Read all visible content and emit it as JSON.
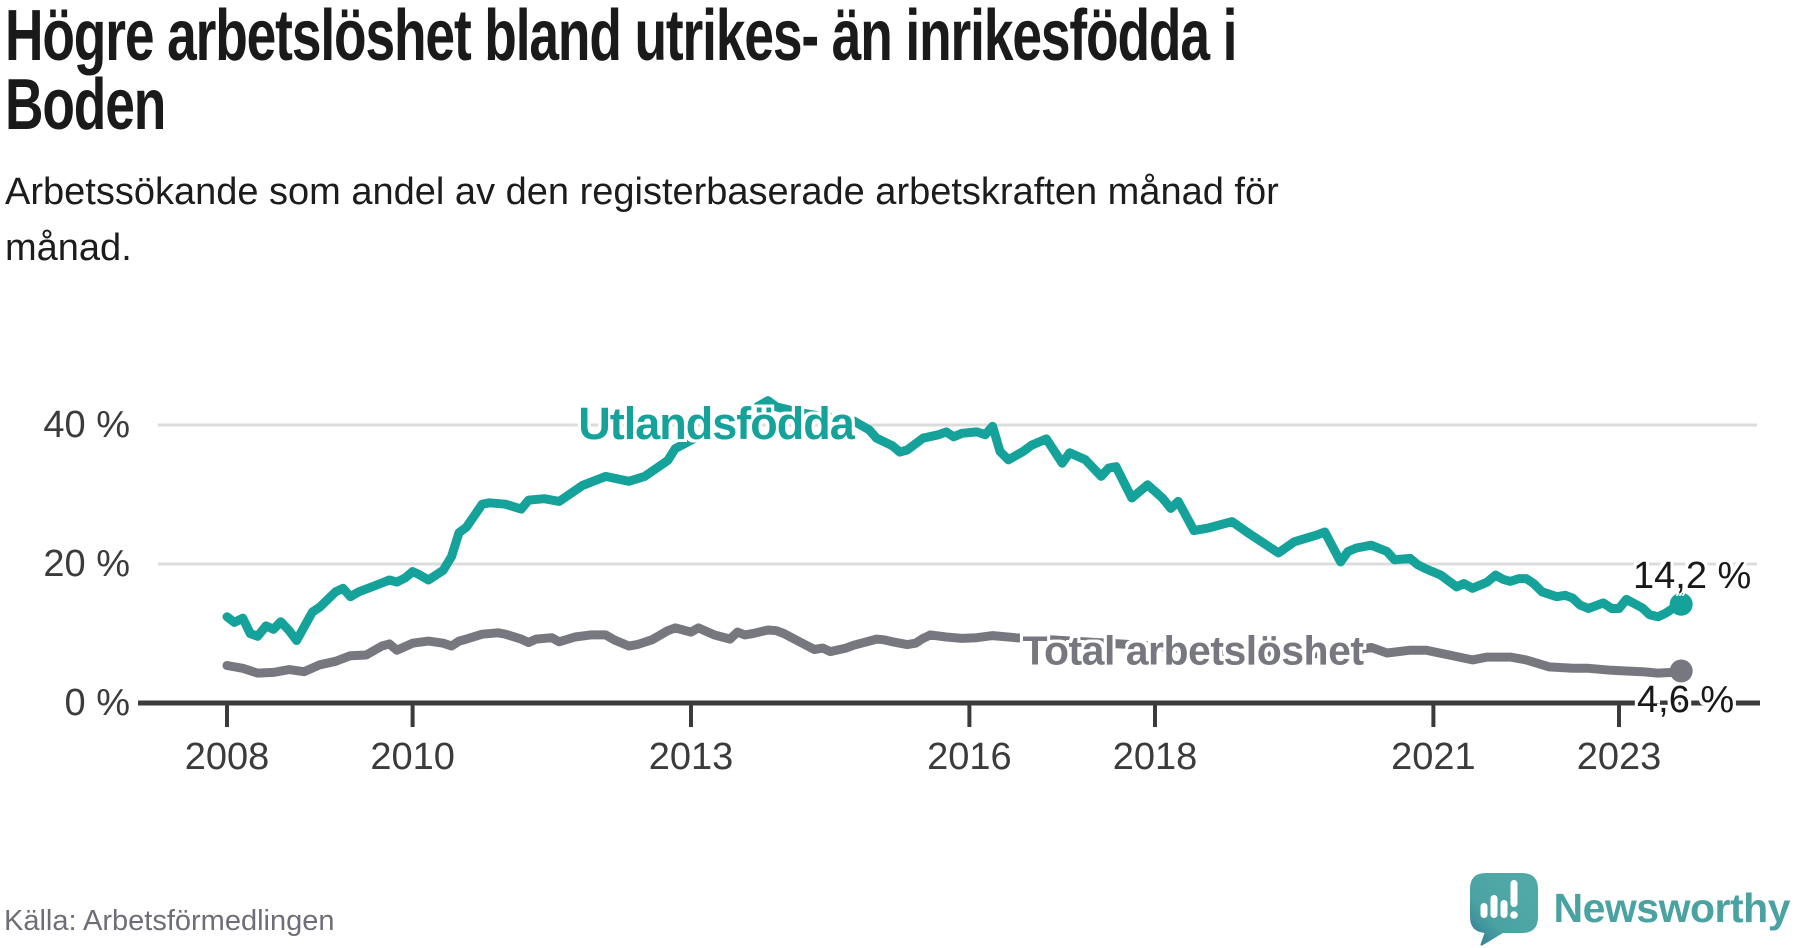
{
  "header": {
    "title_lines": [
      "Högre arbetslöshet bland utrikes- än inrikesfödda i",
      "Boden"
    ],
    "subtitle_lines": [
      "Arbetssökande som andel av den registerbaserade arbetskraften månad för",
      "månad."
    ]
  },
  "footer": {
    "source": "Källa: Arbetsförmedlingen",
    "brand_name": "Newsworthy"
  },
  "colors": {
    "utlandsfodda": "#15a29a",
    "total": "#77777f",
    "axis": "#3b3b3b",
    "grid": "#dcdcdc",
    "brand_teal": "#4aa3a2",
    "title_text": "#1a1a1a"
  },
  "chart_data": {
    "type": "line",
    "title": "Högre arbetslöshet bland utrikes- än inrikesfödda i Boden",
    "subtitle": "Arbetssökande som andel av den registerbaserade arbetskraften månad för månad.",
    "unit": "%",
    "grid": "horizontal",
    "legend_position": "inline-labels",
    "x_axis": {
      "ticks": [
        2008,
        2010,
        2013,
        2016,
        2018,
        2021,
        2023
      ],
      "range": [
        2008,
        2023.75
      ]
    },
    "y_axis": {
      "ticks": [
        {
          "value": 0,
          "label": "0 %"
        },
        {
          "value": 20,
          "label": "20 %"
        },
        {
          "value": 40,
          "label": "40 %"
        }
      ],
      "range": [
        0,
        45
      ]
    },
    "series": [
      {
        "name": "Utlandsfödda",
        "color": "#15a29a",
        "end_label": "14,2 %",
        "latest_value": 14.2,
        "points": [
          [
            2008,
            12.4
          ],
          [
            2008.08,
            11.6
          ],
          [
            2008.17,
            12.2
          ],
          [
            2008.25,
            10
          ],
          [
            2008.33,
            9.6
          ],
          [
            2008.42,
            11.1
          ],
          [
            2008.5,
            10.6
          ],
          [
            2008.58,
            11.7
          ],
          [
            2008.67,
            10.4
          ],
          [
            2008.75,
            9
          ],
          [
            2008.92,
            13.1
          ],
          [
            2009,
            13.8
          ],
          [
            2009.17,
            16
          ],
          [
            2009.25,
            16.5
          ],
          [
            2009.33,
            15.3
          ],
          [
            2009.42,
            16
          ],
          [
            2009.58,
            16.8
          ],
          [
            2009.75,
            17.7
          ],
          [
            2009.83,
            17.4
          ],
          [
            2009.92,
            18
          ],
          [
            2010,
            18.9
          ],
          [
            2010.08,
            18.4
          ],
          [
            2010.17,
            17.7
          ],
          [
            2010.33,
            19.1
          ],
          [
            2010.42,
            21.1
          ],
          [
            2010.5,
            24.5
          ],
          [
            2010.58,
            25.3
          ],
          [
            2010.75,
            28.6
          ],
          [
            2010.83,
            28.8
          ],
          [
            2011,
            28.6
          ],
          [
            2011.17,
            27.9
          ],
          [
            2011.25,
            29.2
          ],
          [
            2011.42,
            29.4
          ],
          [
            2011.58,
            29
          ],
          [
            2011.83,
            31.3
          ],
          [
            2012.08,
            32.6
          ],
          [
            2012.33,
            31.9
          ],
          [
            2012.5,
            32.6
          ],
          [
            2012.75,
            34.9
          ],
          [
            2012.83,
            36.6
          ],
          [
            2013,
            37.8
          ],
          [
            2013.25,
            39.5
          ],
          [
            2013.5,
            41
          ],
          [
            2013.67,
            42.3
          ],
          [
            2013.83,
            43.5
          ],
          [
            2013.92,
            42.6
          ],
          [
            2014.17,
            41.8
          ],
          [
            2014.42,
            41.2
          ],
          [
            2014.75,
            40.6
          ],
          [
            2014.92,
            39.3
          ],
          [
            2015,
            38.1
          ],
          [
            2015.17,
            37
          ],
          [
            2015.25,
            36.1
          ],
          [
            2015.33,
            36.4
          ],
          [
            2015.5,
            38.1
          ],
          [
            2015.67,
            38.6
          ],
          [
            2015.75,
            39
          ],
          [
            2015.83,
            38.3
          ],
          [
            2015.92,
            38.8
          ],
          [
            2016.08,
            39
          ],
          [
            2016.17,
            38.6
          ],
          [
            2016.25,
            39.8
          ],
          [
            2016.33,
            36.2
          ],
          [
            2016.42,
            35
          ],
          [
            2016.58,
            36.2
          ],
          [
            2016.67,
            37.1
          ],
          [
            2016.83,
            38
          ],
          [
            2017,
            34.5
          ],
          [
            2017.08,
            36
          ],
          [
            2017.25,
            35
          ],
          [
            2017.42,
            32.6
          ],
          [
            2017.5,
            33.8
          ],
          [
            2017.58,
            34
          ],
          [
            2017.75,
            29.5
          ],
          [
            2017.92,
            31.4
          ],
          [
            2018.08,
            29.5
          ],
          [
            2018.17,
            28
          ],
          [
            2018.25,
            29
          ],
          [
            2018.42,
            24.8
          ],
          [
            2018.58,
            25.2
          ],
          [
            2018.83,
            26.1
          ],
          [
            2019,
            24.5
          ],
          [
            2019.25,
            22.3
          ],
          [
            2019.33,
            21.6
          ],
          [
            2019.5,
            23.2
          ],
          [
            2019.75,
            24.2
          ],
          [
            2019.83,
            24.6
          ],
          [
            2020,
            20.3
          ],
          [
            2020.08,
            21.8
          ],
          [
            2020.17,
            22.3
          ],
          [
            2020.33,
            22.7
          ],
          [
            2020.5,
            21.8
          ],
          [
            2020.58,
            20.6
          ],
          [
            2020.75,
            20.8
          ],
          [
            2020.83,
            19.9
          ],
          [
            2020.92,
            19.3
          ],
          [
            2021.08,
            18.4
          ],
          [
            2021.17,
            17.5
          ],
          [
            2021.25,
            16.7
          ],
          [
            2021.33,
            17.2
          ],
          [
            2021.42,
            16.5
          ],
          [
            2021.58,
            17.4
          ],
          [
            2021.67,
            18.4
          ],
          [
            2021.75,
            17.8
          ],
          [
            2021.83,
            17.5
          ],
          [
            2021.92,
            17.9
          ],
          [
            2022,
            17.9
          ],
          [
            2022.08,
            17.2
          ],
          [
            2022.17,
            16
          ],
          [
            2022.33,
            15.3
          ],
          [
            2022.42,
            15.5
          ],
          [
            2022.5,
            15.1
          ],
          [
            2022.58,
            14.1
          ],
          [
            2022.67,
            13.6
          ],
          [
            2022.83,
            14.4
          ],
          [
            2022.92,
            13.6
          ],
          [
            2023,
            13.6
          ],
          [
            2023.08,
            14.9
          ],
          [
            2023.25,
            13.7
          ],
          [
            2023.33,
            12.7
          ],
          [
            2023.42,
            12.4
          ],
          [
            2023.5,
            12.9
          ],
          [
            2023.58,
            13.6
          ],
          [
            2023.67,
            14.2
          ]
        ]
      },
      {
        "name": "Total arbetslöshet",
        "color": "#77777f",
        "end_label": "4,6 %",
        "latest_value": 4.6,
        "points": [
          [
            2008,
            5.4
          ],
          [
            2008.17,
            5
          ],
          [
            2008.33,
            4.3
          ],
          [
            2008.5,
            4.4
          ],
          [
            2008.67,
            4.8
          ],
          [
            2008.83,
            4.5
          ],
          [
            2009,
            5.5
          ],
          [
            2009.17,
            6
          ],
          [
            2009.33,
            6.8
          ],
          [
            2009.5,
            6.9
          ],
          [
            2009.67,
            8.2
          ],
          [
            2009.75,
            8.5
          ],
          [
            2009.83,
            7.6
          ],
          [
            2010,
            8.6
          ],
          [
            2010.17,
            8.9
          ],
          [
            2010.33,
            8.6
          ],
          [
            2010.42,
            8.2
          ],
          [
            2010.5,
            8.9
          ],
          [
            2010.58,
            9.2
          ],
          [
            2010.75,
            9.9
          ],
          [
            2010.92,
            10.1
          ],
          [
            2011,
            9.9
          ],
          [
            2011.17,
            9.2
          ],
          [
            2011.25,
            8.7
          ],
          [
            2011.33,
            9.2
          ],
          [
            2011.5,
            9.4
          ],
          [
            2011.58,
            8.8
          ],
          [
            2011.75,
            9.5
          ],
          [
            2011.92,
            9.8
          ],
          [
            2012.08,
            9.8
          ],
          [
            2012.17,
            9.1
          ],
          [
            2012.33,
            8.2
          ],
          [
            2012.42,
            8.4
          ],
          [
            2012.58,
            9.1
          ],
          [
            2012.75,
            10.4
          ],
          [
            2012.83,
            10.8
          ],
          [
            2013,
            10.2
          ],
          [
            2013.08,
            10.8
          ],
          [
            2013.25,
            9.8
          ],
          [
            2013.42,
            9.2
          ],
          [
            2013.5,
            10.2
          ],
          [
            2013.58,
            9.8
          ],
          [
            2013.67,
            10
          ],
          [
            2013.83,
            10.5
          ],
          [
            2013.92,
            10.4
          ],
          [
            2014,
            10
          ],
          [
            2014.17,
            8.8
          ],
          [
            2014.33,
            7.7
          ],
          [
            2014.42,
            7.9
          ],
          [
            2014.5,
            7.4
          ],
          [
            2014.67,
            7.9
          ],
          [
            2014.75,
            8.3
          ],
          [
            2014.92,
            8.9
          ],
          [
            2015,
            9.2
          ],
          [
            2015.08,
            9.1
          ],
          [
            2015.17,
            8.8
          ],
          [
            2015.33,
            8.4
          ],
          [
            2015.42,
            8.6
          ],
          [
            2015.5,
            9.3
          ],
          [
            2015.58,
            9.8
          ],
          [
            2015.75,
            9.5
          ],
          [
            2015.92,
            9.3
          ],
          [
            2016.08,
            9.4
          ],
          [
            2016.25,
            9.7
          ],
          [
            2016.5,
            9.4
          ],
          [
            2017,
            9
          ],
          [
            2017.5,
            8.6
          ],
          [
            2018,
            8.2
          ],
          [
            2018.5,
            7.6
          ],
          [
            2019,
            7.3
          ],
          [
            2019.5,
            7
          ],
          [
            2020,
            7.2
          ],
          [
            2020.33,
            8
          ],
          [
            2020.5,
            7.2
          ],
          [
            2020.75,
            7.6
          ],
          [
            2020.92,
            7.6
          ],
          [
            2021.17,
            6.9
          ],
          [
            2021.42,
            6.2
          ],
          [
            2021.58,
            6.6
          ],
          [
            2021.83,
            6.6
          ],
          [
            2022,
            6.2
          ],
          [
            2022.25,
            5.2
          ],
          [
            2022.5,
            5
          ],
          [
            2022.67,
            5
          ],
          [
            2022.92,
            4.7
          ],
          [
            2023.08,
            4.6
          ],
          [
            2023.25,
            4.5
          ],
          [
            2023.42,
            4.3
          ],
          [
            2023.58,
            4.4
          ],
          [
            2023.67,
            4.6
          ]
        ]
      }
    ]
  }
}
